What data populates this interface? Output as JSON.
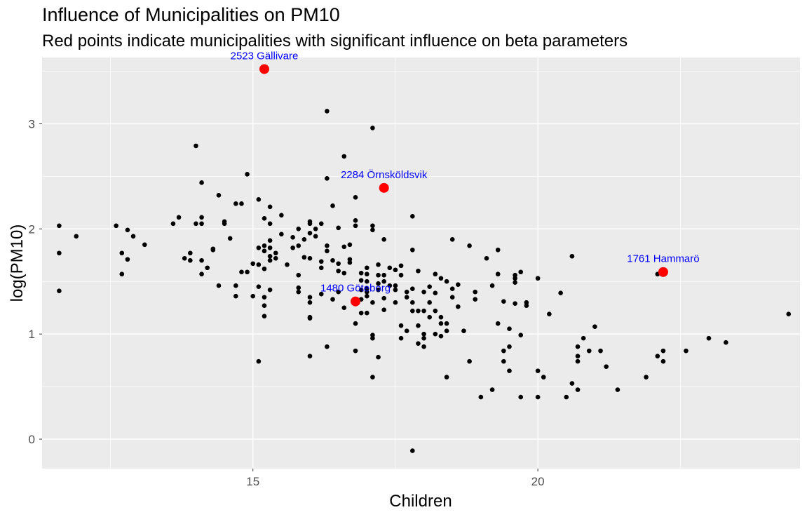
{
  "chart_data": {
    "type": "scatter",
    "title": "Influence of Municipalities on PM10",
    "subtitle": "Red points indicate municipalities with significant influence on beta parameters",
    "xlabel": "Children",
    "ylabel": "log(PM10)",
    "xlim": [
      11.3,
      24.6
    ],
    "ylim": [
      -0.28,
      3.63
    ],
    "x_ticks": [
      15,
      20
    ],
    "y_ticks": [
      0,
      1,
      2,
      3
    ],
    "grid": true,
    "background": "#ebebeb",
    "grid_color": "#ffffff",
    "point_color": "#000000",
    "highlight_color": "#ff0000",
    "label_color": "#0000ff",
    "points": [
      [
        11.6,
        2.03
      ],
      [
        11.6,
        1.77
      ],
      [
        11.6,
        1.41
      ],
      [
        11.9,
        1.93
      ],
      [
        12.6,
        2.03
      ],
      [
        12.7,
        1.77
      ],
      [
        12.7,
        1.57
      ],
      [
        12.8,
        1.99
      ],
      [
        12.8,
        1.71
      ],
      [
        12.9,
        1.93
      ],
      [
        13.1,
        1.85
      ],
      [
        13.6,
        2.05
      ],
      [
        13.7,
        2.11
      ],
      [
        13.8,
        1.72
      ],
      [
        13.9,
        1.77
      ],
      [
        13.9,
        1.7
      ],
      [
        14.0,
        2.79
      ],
      [
        14.0,
        2.05
      ],
      [
        14.1,
        2.11
      ],
      [
        14.1,
        2.05
      ],
      [
        14.1,
        1.7
      ],
      [
        14.1,
        1.57
      ],
      [
        14.1,
        2.44
      ],
      [
        14.2,
        1.63
      ],
      [
        14.3,
        1.8
      ],
      [
        14.3,
        1.81
      ],
      [
        14.4,
        2.32
      ],
      [
        14.4,
        1.46
      ],
      [
        14.5,
        2.07
      ],
      [
        14.5,
        2.05
      ],
      [
        14.6,
        1.91
      ],
      [
        14.7,
        2.24
      ],
      [
        14.7,
        1.46
      ],
      [
        14.7,
        1.36
      ],
      [
        14.8,
        2.24
      ],
      [
        14.8,
        1.59
      ],
      [
        14.9,
        2.52
      ],
      [
        14.9,
        1.59
      ],
      [
        15.0,
        1.67
      ],
      [
        15.0,
        1.36
      ],
      [
        15.1,
        2.28
      ],
      [
        15.1,
        1.82
      ],
      [
        15.1,
        1.66
      ],
      [
        15.1,
        1.45
      ],
      [
        15.1,
        0.74
      ],
      [
        15.2,
        2.1
      ],
      [
        15.2,
        1.84
      ],
      [
        15.2,
        1.79
      ],
      [
        15.2,
        1.62
      ],
      [
        15.2,
        1.35
      ],
      [
        15.2,
        1.27
      ],
      [
        15.2,
        1.17
      ],
      [
        15.3,
        2.05
      ],
      [
        15.3,
        1.89
      ],
      [
        15.3,
        1.82
      ],
      [
        15.3,
        1.74
      ],
      [
        15.3,
        1.7
      ],
      [
        15.3,
        1.42
      ],
      [
        15.3,
        2.21
      ],
      [
        15.4,
        1.77
      ],
      [
        15.4,
        1.72
      ],
      [
        15.5,
        2.13
      ],
      [
        15.5,
        1.95
      ],
      [
        15.6,
        1.66
      ],
      [
        15.7,
        1.82
      ],
      [
        15.7,
        1.92
      ],
      [
        15.8,
        2.0
      ],
      [
        15.8,
        1.84
      ],
      [
        15.8,
        1.56
      ],
      [
        15.8,
        1.44
      ],
      [
        15.8,
        1.4
      ],
      [
        15.9,
        1.73
      ],
      [
        15.9,
        1.9
      ],
      [
        16.0,
        2.07
      ],
      [
        16.0,
        2.05
      ],
      [
        16.0,
        1.96
      ],
      [
        16.0,
        1.72
      ],
      [
        16.0,
        1.35
      ],
      [
        16.0,
        1.3
      ],
      [
        16.0,
        1.16
      ],
      [
        16.0,
        1.15
      ],
      [
        16.0,
        0.79
      ],
      [
        16.1,
        2.0
      ],
      [
        16.1,
        1.93
      ],
      [
        16.2,
        2.05
      ],
      [
        16.2,
        1.69
      ],
      [
        16.2,
        1.63
      ],
      [
        16.2,
        1.38
      ],
      [
        16.3,
        3.12
      ],
      [
        16.3,
        2.48
      ],
      [
        16.3,
        1.84
      ],
      [
        16.3,
        1.79
      ],
      [
        16.3,
        0.88
      ],
      [
        16.4,
        2.22
      ],
      [
        16.4,
        1.7
      ],
      [
        16.4,
        1.33
      ],
      [
        16.5,
        2.01
      ],
      [
        16.5,
        1.67
      ],
      [
        16.5,
        1.6
      ],
      [
        16.5,
        1.4
      ],
      [
        16.6,
        2.69
      ],
      [
        16.6,
        1.83
      ],
      [
        16.6,
        1.58
      ],
      [
        16.6,
        1.25
      ],
      [
        16.7,
        1.85
      ],
      [
        16.7,
        1.71
      ],
      [
        16.7,
        1.68
      ],
      [
        16.8,
        2.08
      ],
      [
        16.8,
        2.03
      ],
      [
        16.8,
        2.3
      ],
      [
        16.8,
        1.1
      ],
      [
        16.8,
        0.84
      ],
      [
        16.9,
        1.58
      ],
      [
        16.9,
        1.42
      ],
      [
        16.9,
        1.51
      ],
      [
        16.9,
        1.33
      ],
      [
        16.9,
        1.2
      ],
      [
        17.0,
        1.63
      ],
      [
        17.0,
        1.57
      ],
      [
        17.0,
        1.5
      ],
      [
        17.0,
        1.43
      ],
      [
        17.0,
        1.4
      ],
      [
        17.0,
        1.36
      ],
      [
        17.0,
        1.2
      ],
      [
        17.1,
        2.96
      ],
      [
        17.1,
        2.03
      ],
      [
        17.1,
        1.99
      ],
      [
        17.1,
        1.3
      ],
      [
        17.1,
        0.99
      ],
      [
        17.1,
        0.96
      ],
      [
        17.1,
        0.59
      ],
      [
        17.2,
        1.66
      ],
      [
        17.2,
        1.56
      ],
      [
        17.2,
        1.48
      ],
      [
        17.2,
        1.42
      ],
      [
        17.2,
        0.78
      ],
      [
        17.3,
        1.9
      ],
      [
        17.3,
        1.56
      ],
      [
        17.3,
        1.5
      ],
      [
        17.3,
        1.34
      ],
      [
        17.3,
        1.23
      ],
      [
        17.4,
        1.63
      ],
      [
        17.4,
        1.46
      ],
      [
        17.5,
        1.61
      ],
      [
        17.5,
        1.46
      ],
      [
        17.5,
        1.42
      ],
      [
        17.5,
        1.3
      ],
      [
        17.6,
        1.65
      ],
      [
        17.6,
        1.56
      ],
      [
        17.6,
        1.08
      ],
      [
        17.6,
        0.96
      ],
      [
        17.7,
        1.4
      ],
      [
        17.7,
        1.35
      ],
      [
        17.7,
        1.03
      ],
      [
        17.8,
        2.12
      ],
      [
        17.8,
        1.8
      ],
      [
        17.8,
        1.43
      ],
      [
        17.8,
        1.3
      ],
      [
        17.8,
        1.22
      ],
      [
        17.8,
        -0.11
      ],
      [
        17.9,
        1.6
      ],
      [
        17.9,
        1.22
      ],
      [
        17.9,
        1.08
      ],
      [
        17.9,
        0.91
      ],
      [
        18.0,
        1.4
      ],
      [
        18.0,
        1.22
      ],
      [
        18.0,
        1.0
      ],
      [
        18.0,
        0.96
      ],
      [
        18.0,
        0.88
      ],
      [
        18.1,
        1.45
      ],
      [
        18.1,
        1.3
      ],
      [
        18.1,
        1.16
      ],
      [
        18.2,
        1.57
      ],
      [
        18.2,
        1.39
      ],
      [
        18.2,
        1.22
      ],
      [
        18.2,
        1.0
      ],
      [
        18.3,
        1.53
      ],
      [
        18.3,
        1.16
      ],
      [
        18.3,
        1.1
      ],
      [
        18.3,
        0.98
      ],
      [
        18.4,
        1.5
      ],
      [
        18.4,
        1.1
      ],
      [
        18.4,
        1.03
      ],
      [
        18.4,
        0.59
      ],
      [
        18.5,
        1.43
      ],
      [
        18.5,
        1.35
      ],
      [
        18.5,
        1.9
      ],
      [
        18.6,
        1.47
      ],
      [
        18.6,
        1.26
      ],
      [
        18.7,
        1.03
      ],
      [
        18.8,
        1.84
      ],
      [
        18.8,
        0.74
      ],
      [
        18.9,
        1.4
      ],
      [
        18.9,
        1.33
      ],
      [
        19.0,
        0.4
      ],
      [
        19.1,
        1.72
      ],
      [
        19.2,
        1.46
      ],
      [
        19.2,
        0.47
      ],
      [
        19.3,
        1.8
      ],
      [
        19.3,
        1.57
      ],
      [
        19.3,
        1.1
      ],
      [
        19.4,
        1.31
      ],
      [
        19.4,
        0.84
      ],
      [
        19.4,
        0.74
      ],
      [
        19.5,
        1.05
      ],
      [
        19.5,
        0.88
      ],
      [
        19.5,
        0.65
      ],
      [
        19.6,
        1.56
      ],
      [
        19.6,
        1.53
      ],
      [
        19.6,
        1.49
      ],
      [
        19.6,
        1.29
      ],
      [
        19.7,
        1.59
      ],
      [
        19.7,
        0.99
      ],
      [
        19.7,
        0.4
      ],
      [
        19.8,
        1.3
      ],
      [
        19.8,
        1.27
      ],
      [
        20.0,
        1.53
      ],
      [
        20.0,
        0.65
      ],
      [
        20.0,
        0.4
      ],
      [
        20.1,
        0.59
      ],
      [
        20.2,
        1.19
      ],
      [
        20.4,
        1.39
      ],
      [
        20.5,
        0.4
      ],
      [
        20.6,
        1.74
      ],
      [
        20.6,
        0.53
      ],
      [
        20.7,
        0.47
      ],
      [
        20.7,
        0.88
      ],
      [
        20.7,
        0.79
      ],
      [
        20.7,
        0.74
      ],
      [
        20.8,
        0.96
      ],
      [
        20.9,
        0.84
      ],
      [
        21.0,
        1.07
      ],
      [
        21.1,
        0.84
      ],
      [
        21.2,
        0.69
      ],
      [
        21.4,
        0.47
      ],
      [
        21.9,
        0.59
      ],
      [
        22.1,
        0.79
      ],
      [
        22.1,
        1.57
      ],
      [
        22.2,
        0.84
      ],
      [
        22.2,
        0.74
      ],
      [
        22.6,
        0.84
      ],
      [
        23.0,
        0.96
      ],
      [
        23.3,
        0.92
      ],
      [
        24.4,
        1.19
      ]
    ],
    "highlighted": [
      {
        "label": "2523 Gällivare",
        "x": 15.2,
        "y": 3.52
      },
      {
        "label": "2284 Örnsköldsvik",
        "x": 17.3,
        "y": 2.39
      },
      {
        "label": "1761 Hammarö",
        "x": 22.2,
        "y": 1.59
      },
      {
        "label": "1480 Göteborg",
        "x": 16.8,
        "y": 1.31
      }
    ]
  }
}
